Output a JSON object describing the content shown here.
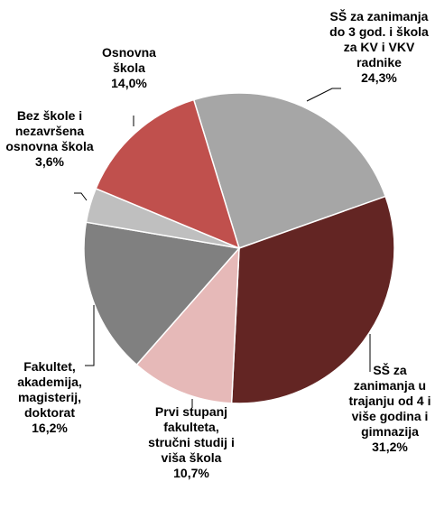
{
  "chart_data": {
    "type": "pie",
    "categories": [
      "SŠ za zanimanja do 3 god. i škola za KV i VKV radnike",
      "SŠ za zanimanja u trajanju od 4 i više godina i gimnazija",
      "Prvi stupanj fakulteta, stručni studij i viša škola",
      "Fakultet, akademija, magisterij, doktorat",
      "Bez škole i nezavršena osnovna škola",
      "Osnovna škola"
    ],
    "values": [
      24.3,
      31.2,
      10.7,
      16.2,
      3.6,
      14.0
    ],
    "value_labels": [
      "24,3%",
      "31,2%",
      "10,7%",
      "16,2%",
      "3,6%",
      "14,0%"
    ],
    "colors": [
      "#a6a6a6",
      "#632523",
      "#e6b9b8",
      "#808080",
      "#bfbfbf",
      "#c0504d"
    ]
  }
}
